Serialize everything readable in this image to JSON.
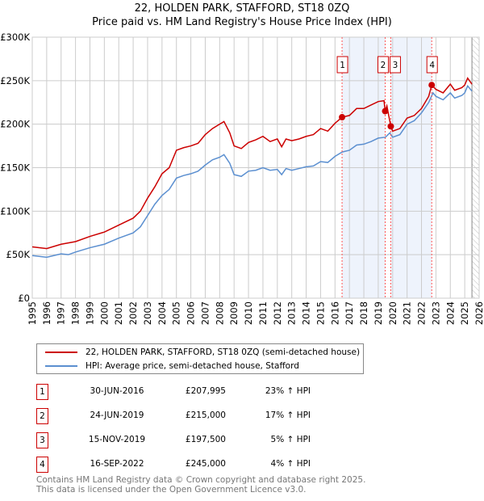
{
  "title": "22, HOLDEN PARK, STAFFORD, ST18 0ZQ",
  "subtitle": "Price paid vs. HM Land Registry's House Price Index (HPI)",
  "legend": [
    "22, HOLDEN PARK, STAFFORD, ST18 0ZQ (semi-detached house)",
    "HPI: Average price, semi-detached house, Stafford"
  ],
  "sales": [
    {
      "n": "1",
      "date": "30-JUN-2016",
      "price": "£207,995",
      "hpi": "23% ↑ HPI",
      "x": 2016.49,
      "y": 207995
    },
    {
      "n": "2",
      "date": "24-JUN-2019",
      "price": "£215,000",
      "hpi": "17% ↑ HPI",
      "x": 2019.48,
      "y": 215000
    },
    {
      "n": "3",
      "date": "15-NOV-2019",
      "price": "£197,500",
      "hpi": "5% ↑ HPI",
      "x": 2019.87,
      "y": 197500
    },
    {
      "n": "4",
      "date": "16-SEP-2022",
      "price": "£245,000",
      "hpi": "4% ↑ HPI",
      "x": 2022.71,
      "y": 245000
    }
  ],
  "footer": [
    "Contains HM Land Registry data © Crown copyright and database right 2025.",
    "This data is licensed under the Open Government Licence v3.0."
  ],
  "chart_data": {
    "type": "line",
    "xlim": [
      1995,
      2026
    ],
    "ylim": [
      0,
      300000
    ],
    "yticks": [
      {
        "v": 0,
        "l": "£0"
      },
      {
        "v": 50000,
        "l": "£50K"
      },
      {
        "v": 100000,
        "l": "£100K"
      },
      {
        "v": 150000,
        "l": "£150K"
      },
      {
        "v": 200000,
        "l": "£200K"
      },
      {
        "v": 250000,
        "l": "£250K"
      },
      {
        "v": 300000,
        "l": "£300K"
      }
    ],
    "xticks": [
      "1995",
      "1996",
      "1997",
      "1998",
      "1999",
      "2000",
      "2001",
      "2002",
      "2003",
      "2004",
      "2005",
      "2006",
      "2007",
      "2008",
      "2009",
      "2010",
      "2011",
      "2012",
      "2013",
      "2014",
      "2015",
      "2016",
      "2017",
      "2018",
      "2019",
      "2020",
      "2021",
      "2022",
      "2023",
      "2024",
      "2025",
      "2026"
    ],
    "colors": {
      "price": "#cc0000",
      "hpi": "#5b8fd0",
      "shade": "#eef3fc"
    },
    "shaded": [
      [
        2016.49,
        2019.48
      ],
      [
        2019.87,
        2022.71
      ]
    ],
    "hatched_from": 2025.5,
    "series": [
      {
        "name": "price",
        "x": [
          1995,
          1996,
          1997,
          1998,
          1999,
          2000,
          2001,
          2002,
          2002.5,
          2003,
          2003.5,
          2004,
          2004.5,
          2005,
          2005.5,
          2006,
          2006.5,
          2007,
          2007.5,
          2008,
          2008.3,
          2008.7,
          2009,
          2009.5,
          2010,
          2010.5,
          2011,
          2011.5,
          2012,
          2012.3,
          2012.6,
          2013,
          2013.5,
          2014,
          2014.5,
          2015,
          2015.5,
          2016,
          2016.49,
          2017,
          2017.5,
          2018,
          2018.5,
          2019,
          2019.4,
          2019.48,
          2019.6,
          2019.87,
          2020,
          2020.5,
          2021,
          2021.5,
          2022,
          2022.5,
          2022.71,
          2023,
          2023.5,
          2024,
          2024.3,
          2024.8,
          2025,
          2025.2,
          2025.5
        ],
        "y": [
          59,
          57,
          62,
          65,
          71,
          76,
          84,
          92,
          100,
          115,
          128,
          143,
          150,
          170,
          173,
          175,
          178,
          188,
          195,
          200,
          203,
          190,
          175,
          172,
          179,
          182,
          186,
          180,
          183,
          174,
          183,
          181,
          183,
          186,
          188,
          195,
          192,
          201,
          208,
          210,
          218,
          218,
          222,
          226,
          227,
          215,
          221,
          197.5,
          192,
          195,
          207,
          210,
          218,
          232,
          245,
          240,
          236,
          246,
          239,
          242,
          245,
          253,
          246
        ]
      },
      {
        "name": "hpi",
        "x": [
          1995,
          1996,
          1997,
          1997.5,
          1998,
          1999,
          2000,
          2001,
          2002,
          2002.5,
          2003,
          2003.5,
          2004,
          2004.5,
          2005,
          2005.5,
          2006,
          2006.5,
          2007,
          2007.5,
          2008,
          2008.3,
          2008.7,
          2009,
          2009.5,
          2010,
          2010.5,
          2011,
          2011.5,
          2012,
          2012.3,
          2012.6,
          2013,
          2013.5,
          2014,
          2014.5,
          2015,
          2015.5,
          2016,
          2016.5,
          2017,
          2017.5,
          2018,
          2018.5,
          2019,
          2019.5,
          2019.8,
          2020,
          2020.5,
          2021,
          2021.5,
          2022,
          2022.5,
          2022.8,
          2023,
          2023.5,
          2024,
          2024.3,
          2024.8,
          2025,
          2025.2,
          2025.5
        ],
        "y": [
          49,
          47,
          51,
          50,
          53,
          58,
          62,
          69,
          75,
          82,
          95,
          108,
          118,
          125,
          138,
          141,
          143,
          146,
          153,
          159,
          162,
          165,
          155,
          142,
          140,
          146,
          147,
          150,
          147,
          148,
          142,
          149,
          147,
          149,
          151,
          152,
          157,
          156,
          163,
          168,
          170,
          176,
          177,
          180,
          184,
          185,
          190,
          185,
          188,
          200,
          204,
          213,
          225,
          236,
          232,
          228,
          236,
          230,
          233,
          236,
          244,
          238
        ]
      }
    ]
  }
}
